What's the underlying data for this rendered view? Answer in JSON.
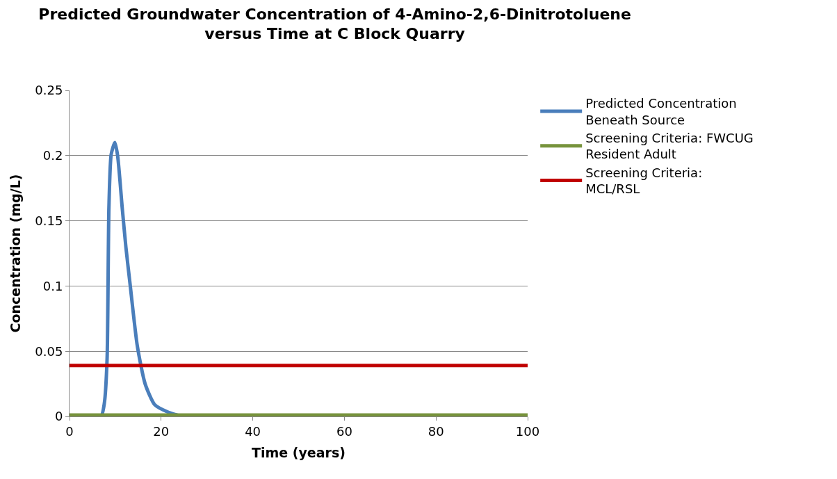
{
  "chart_data": {
    "type": "line",
    "title": "Predicted Groundwater Concentration of 4-Amino-2,6-Dinitrotoluene versus Time at C Block Quarry",
    "xlabel": "Time (years)",
    "ylabel": "Concentration (mg/L)",
    "series": [
      {
        "name": "Predicted Concentration Beneath Source",
        "color": "#4a7ebb",
        "x": [
          0,
          5,
          6.9,
          7.6,
          8.2,
          8.6,
          9.1,
          9.9,
          10.5,
          11.5,
          12.3,
          13.2,
          14.8,
          16.5,
          18.6,
          21.4,
          24.7,
          30
        ],
        "values": [
          0,
          0,
          0,
          0.01,
          0.044,
          0.16,
          0.201,
          0.21,
          0.2,
          0.16,
          0.13,
          0.102,
          0.054,
          0.025,
          0.009,
          0.0035,
          0,
          0
        ]
      },
      {
        "name": "Screening Criteria: FWCUG Resident Adult",
        "color": "#77933c",
        "x": [
          0,
          100
        ],
        "values": [
          0.001,
          0.001
        ]
      },
      {
        "name": "Screening Criteria: MCL/RSL",
        "color": "#c00000",
        "x": [
          0,
          100
        ],
        "values": [
          0.039,
          0.039
        ]
      }
    ],
    "xlim": [
      0,
      100
    ],
    "xticks": [
      0,
      20,
      40,
      60,
      80,
      100
    ],
    "ylim": [
      0,
      0.25
    ],
    "yticks": [
      0,
      0.05,
      0.1,
      0.15,
      0.2,
      0.25
    ],
    "grid": "y",
    "legend": "right",
    "marker": "none",
    "line_style": "solid"
  }
}
